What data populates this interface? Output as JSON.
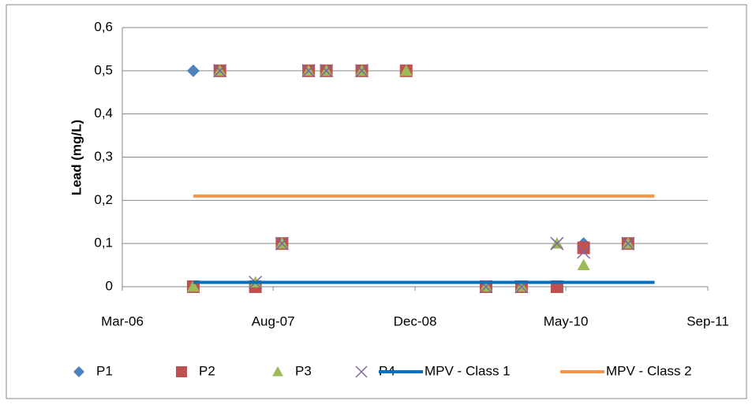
{
  "chart_data": {
    "type": "scatter",
    "ylabel": "Lead (mg/L)",
    "xlim": [
      "2006-03",
      "2011-09"
    ],
    "xticks": [
      {
        "value": "2006-03",
        "label": "Mar-06"
      },
      {
        "value": "2007-08",
        "label": "Aug-07"
      },
      {
        "value": "2008-12",
        "label": "Dec-08"
      },
      {
        "value": "2010-05",
        "label": "May-10"
      },
      {
        "value": "2011-09",
        "label": "Sep-11"
      }
    ],
    "ylim": [
      0,
      0.6
    ],
    "yticks": [
      0,
      {
        "value": 0.1,
        "label": "0,1"
      },
      {
        "value": 0.2,
        "label": "0,2"
      },
      {
        "value": 0.3,
        "label": "0,3"
      },
      {
        "value": 0.4,
        "label": "0,4"
      },
      {
        "value": 0.5,
        "label": "0,5"
      },
      {
        "value": 0.6,
        "label": "0,6"
      }
    ],
    "grid": true,
    "legend": "bottom",
    "series": [
      {
        "name": "P1",
        "color": "#4f81bd",
        "marker": "diamond",
        "x": [
          "2006-11",
          "2010-07"
        ],
        "values": [
          0.5,
          0.1
        ]
      },
      {
        "name": "P2",
        "color": "#c0504d",
        "marker": "square",
        "x": [
          "2006-11",
          "2007-02",
          "2007-06",
          "2007-09",
          "2007-12",
          "2008-02",
          "2008-06",
          "2008-11",
          "2009-08",
          "2009-12",
          "2010-04",
          "2010-07",
          "2010-12"
        ],
        "values": [
          0,
          0.5,
          0,
          0.1,
          0.5,
          0.5,
          0.5,
          0.5,
          0,
          0,
          0,
          0.09,
          0.1
        ]
      },
      {
        "name": "P3",
        "color": "#9bbb59",
        "marker": "triangle",
        "x": [
          "2006-11",
          "2007-02",
          "2007-06",
          "2007-09",
          "2007-12",
          "2008-02",
          "2008-06",
          "2008-11",
          "2009-08",
          "2009-12",
          "2010-04",
          "2010-07",
          "2010-12"
        ],
        "values": [
          0,
          0.5,
          0.01,
          0.1,
          0.5,
          0.5,
          0.5,
          0.5,
          0,
          0,
          0.1,
          0.05,
          0.1
        ]
      },
      {
        "name": "P4",
        "color": "#8064a2",
        "marker": "x",
        "x": [
          "2007-02",
          "2007-06",
          "2007-09",
          "2007-12",
          "2008-02",
          "2008-06",
          "2009-08",
          "2009-12",
          "2010-04",
          "2010-07",
          "2010-12"
        ],
        "values": [
          0.5,
          0.01,
          0.1,
          0.5,
          0.5,
          0.5,
          0,
          0,
          0.1,
          0.08,
          0.1
        ]
      },
      {
        "name": "MPV - Class 1",
        "color": "#0070c0",
        "marker": "line",
        "x": [
          "2006-11",
          "2011-03"
        ],
        "values": [
          0.01,
          0.01
        ]
      },
      {
        "name": "MPV - Class 2",
        "color": "#f79646",
        "marker": "line",
        "x": [
          "2006-11",
          "2011-03"
        ],
        "values": [
          0.21,
          0.21
        ]
      }
    ]
  }
}
